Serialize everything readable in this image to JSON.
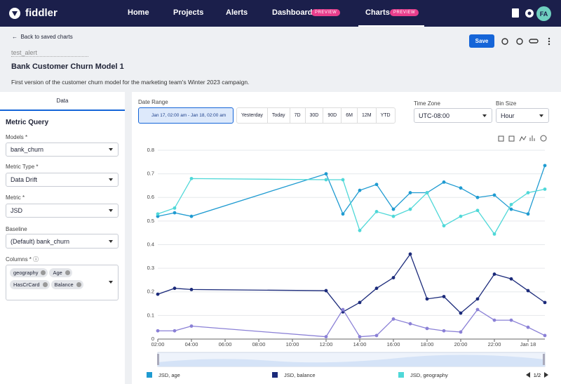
{
  "nav": {
    "brand": "fiddler",
    "items": [
      "Home",
      "Projects",
      "Alerts",
      "Dashboards",
      "Charts"
    ],
    "badge": "PREVIEW",
    "avatar": "FA"
  },
  "header": {
    "back": "Back to saved charts",
    "chart_name": "test_alert",
    "title": "Bank Customer Churn Model 1",
    "description": "First version of the customer churn model for the marketing team's Winter 2023 campaign.",
    "save": "Save"
  },
  "sidebar": {
    "tab": "Data",
    "heading": "Metric Query",
    "fields": [
      {
        "label": "Models *",
        "value": "bank_churn"
      },
      {
        "label": "Metric Type *",
        "value": "Data Drift"
      },
      {
        "label": "Metric *",
        "value": "JSD"
      },
      {
        "label": "Baseline",
        "value": "(Default) bank_churn"
      }
    ],
    "columns_label": "Columns *",
    "columns": [
      "geography",
      "Age",
      "HasCrCard",
      "Balance"
    ]
  },
  "controls": {
    "date_range_label": "Date Range",
    "date_range": "Jan 17, 02:00 am - Jan 18, 02:00 am",
    "presets": [
      "Yesterday",
      "Today",
      "7D",
      "30D",
      "90D",
      "6M",
      "12M",
      "YTD"
    ],
    "time_zone_label": "Time Zone",
    "time_zone": "UTC-08:00",
    "bin_size_label": "Bin Size",
    "bin_size": "Hour"
  },
  "legend_page": "1/2",
  "chart_data": {
    "type": "line",
    "x": [
      2,
      3,
      4,
      12,
      13,
      14,
      15,
      16,
      17,
      18,
      19,
      20,
      21,
      22,
      23,
      24,
      25
    ],
    "xlim": [
      2,
      25
    ],
    "xticks": [
      {
        "value": 2,
        "label": "02:00"
      },
      {
        "value": 4,
        "label": "04:00"
      },
      {
        "value": 6,
        "label": "06:00"
      },
      {
        "value": 8,
        "label": "08:00"
      },
      {
        "value": 10,
        "label": "10:00"
      },
      {
        "value": 12,
        "label": "12:00"
      },
      {
        "value": 14,
        "label": "14:00"
      },
      {
        "value": 16,
        "label": "16:00"
      },
      {
        "value": 18,
        "label": "18:00"
      },
      {
        "value": 20,
        "label": "20:00"
      },
      {
        "value": 22,
        "label": "22:00"
      },
      {
        "value": 24,
        "label": "Jan 18"
      }
    ],
    "ylim": [
      0,
      0.8
    ],
    "yticks": [
      0,
      0.1,
      0.2,
      0.3,
      0.4,
      0.5,
      0.6,
      0.7,
      0.8
    ],
    "grid": true,
    "series": [
      {
        "name": "JSD, age",
        "color": "#1f9bd1",
        "values": [
          0.52,
          0.535,
          0.52,
          0.7,
          0.53,
          0.63,
          0.655,
          0.55,
          0.62,
          0.62,
          0.665,
          0.64,
          0.6,
          0.61,
          0.55,
          0.53,
          0.735
        ]
      },
      {
        "name": "JSD, balance",
        "color": "#1b2a7a",
        "values": [
          0.19,
          0.215,
          0.21,
          0.205,
          0.115,
          0.155,
          0.215,
          0.26,
          0.36,
          0.17,
          0.18,
          0.11,
          0.17,
          0.275,
          0.255,
          0.205,
          0.155
        ]
      },
      {
        "name": "JSD, geography",
        "color": "#4fd8d8",
        "values": [
          0.53,
          0.555,
          0.68,
          0.675,
          0.675,
          0.46,
          0.54,
          0.52,
          0.55,
          0.62,
          0.48,
          0.52,
          0.545,
          0.445,
          0.57,
          0.62,
          0.635
        ]
      },
      {
        "color": "#8a80d6",
        "values": [
          0.035,
          0.035,
          0.055,
          0.01,
          0.125,
          0.01,
          0.015,
          0.085,
          0.065,
          0.045,
          0.035,
          0.03,
          0.125,
          0.08,
          0.08,
          0.05,
          0.015
        ]
      }
    ]
  }
}
